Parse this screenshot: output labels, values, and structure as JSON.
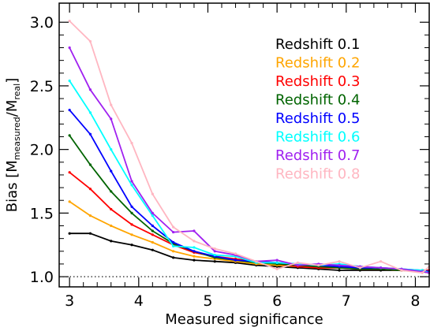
{
  "chart_data": {
    "type": "line",
    "title": "",
    "xlabel": "Measured significance",
    "ylabel": {
      "prefix": "Bias [M",
      "sub1": "measured",
      "mid": "/M",
      "sub2": "real",
      "suffix": "]"
    },
    "xlim": [
      2.85,
      8.2
    ],
    "ylim": [
      0.92,
      3.15
    ],
    "xticks": [
      3,
      4,
      5,
      6,
      7,
      8
    ],
    "yticks": [
      1.0,
      1.5,
      2.0,
      2.5,
      3.0
    ],
    "ytick_labels": [
      "1.0",
      "1.5",
      "2.0",
      "2.5",
      "3.0"
    ],
    "reference_line": {
      "y": 1.0,
      "style": "dotted"
    },
    "legend_position": "top-right",
    "x": [
      3.0,
      3.3,
      3.6,
      3.9,
      4.2,
      4.5,
      4.8,
      5.1,
      5.4,
      5.7,
      6.0,
      6.3,
      6.6,
      6.9,
      7.2,
      7.5,
      7.8,
      8.1,
      8.2
    ],
    "series": [
      {
        "name": "Redshift  0.1",
        "color": "#000000",
        "values": [
          1.34,
          1.34,
          1.28,
          1.25,
          1.21,
          1.15,
          1.13,
          1.12,
          1.11,
          1.09,
          1.08,
          1.07,
          1.06,
          1.05,
          1.05,
          1.05,
          1.05,
          1.04,
          1.05
        ]
      },
      {
        "name": "Redshift  0.2",
        "color": "#ffa500",
        "values": [
          1.59,
          1.48,
          1.4,
          1.33,
          1.27,
          1.2,
          1.16,
          1.14,
          1.12,
          1.1,
          1.09,
          1.08,
          1.07,
          1.07,
          1.06,
          1.06,
          1.05,
          1.04,
          1.03
        ]
      },
      {
        "name": "Redshift  0.3",
        "color": "#ff0000",
        "values": [
          1.82,
          1.69,
          1.53,
          1.41,
          1.33,
          1.25,
          1.19,
          1.16,
          1.14,
          1.12,
          1.1,
          1.08,
          1.07,
          1.07,
          1.06,
          1.06,
          1.05,
          1.05,
          1.05
        ]
      },
      {
        "name": "Redshift  0.4",
        "color": "#006400",
        "values": [
          2.11,
          1.88,
          1.67,
          1.5,
          1.36,
          1.26,
          1.2,
          1.15,
          1.13,
          1.11,
          1.1,
          1.09,
          1.08,
          1.07,
          1.06,
          1.06,
          1.05,
          1.04,
          1.03
        ]
      },
      {
        "name": "Redshift  0.5",
        "color": "#0000ff",
        "values": [
          2.31,
          2.12,
          1.83,
          1.55,
          1.4,
          1.27,
          1.2,
          1.16,
          1.13,
          1.12,
          1.11,
          1.1,
          1.09,
          1.08,
          1.07,
          1.07,
          1.06,
          1.05,
          1.04
        ]
      },
      {
        "name": "Redshift  0.6",
        "color": "#00ffff",
        "values": [
          2.54,
          2.29,
          2.0,
          1.72,
          1.48,
          1.24,
          1.23,
          1.17,
          1.16,
          1.11,
          1.11,
          1.1,
          1.09,
          1.1,
          1.08,
          1.07,
          1.06,
          1.05,
          1.03
        ]
      },
      {
        "name": "Redshift  0.7",
        "color": "#a020f0",
        "values": [
          2.8,
          2.47,
          2.24,
          1.75,
          1.5,
          1.35,
          1.36,
          1.2,
          1.17,
          1.12,
          1.13,
          1.09,
          1.1,
          1.09,
          1.08,
          1.07,
          1.06,
          1.04,
          1.03
        ]
      },
      {
        "name": "Redshift  0.8",
        "color": "#ffb6c1",
        "values": [
          3.01,
          2.85,
          2.35,
          2.05,
          1.65,
          1.39,
          1.28,
          1.22,
          1.18,
          1.12,
          1.06,
          1.11,
          1.09,
          1.12,
          1.07,
          1.12,
          1.05,
          1.03,
          1.08
        ]
      }
    ]
  }
}
